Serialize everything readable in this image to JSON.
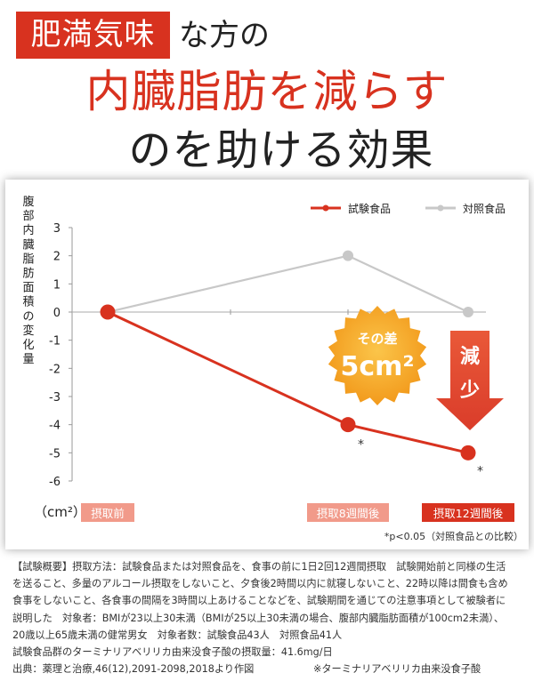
{
  "header": {
    "badge": "肥満気味",
    "badge_suffix": "な方の",
    "headline_red": "内臓脂肪を減らす",
    "headline_black": "のを助ける効果"
  },
  "colors": {
    "accent_red": "#d8321f",
    "control_gray": "#c8c8c8",
    "burst_orange": "#f5a623",
    "tag_pink": "#f19a8a"
  },
  "chart_data": {
    "type": "line",
    "categories": [
      "摂取前",
      "摂取8週間後",
      "摂取12週間後"
    ],
    "series": [
      {
        "name": "試験食品",
        "values": [
          0,
          -4,
          -5
        ],
        "color": "#d8321f"
      },
      {
        "name": "対照食品",
        "values": [
          0,
          2,
          0
        ],
        "color": "#c8c8c8"
      }
    ],
    "ylabel": "腹部内臓脂肪面積の変化量",
    "yunit": "（cm²）",
    "ylim": [
      -6,
      3
    ],
    "yticks": [
      "3",
      "2",
      "1",
      "0",
      "-1",
      "-2",
      "-3",
      "-4",
      "-5",
      "-6"
    ],
    "legend": "top-right",
    "significance_marks": [
      "*",
      "*"
    ],
    "footnote": "*p<0.05（対照食品との比較）",
    "burst_label_top": "その差",
    "burst_label_value": "5cm²",
    "arrow_label": "減少",
    "highlight_category": "摂取12週間後"
  },
  "notes": {
    "lines": [
      "【試験概要】摂取方法：試験食品または対照食品を、食事の前に1日2回12週間摂取　試験開始前と同様の生活",
      "を送ること、多量のアルコール摂取をしないこと、夕食後2時間以内に就寝しないこと、22時以降は間食も含め",
      "食事をしないこと、各食事の間隔を3時間以上あけることなどを、試験期間を通じての注意事項として被験者に",
      "説明した　対象者：BMIが23以上30未満（BMIが25以上30未満の場合、腹部内臓脂肪面積が100cm2未満）、",
      "20歳以上65歳未満の健常男女　対象者数：試験食品43人　対照食品41人",
      "試験食品群のターミナリアベリリカ由来没食子酸の摂取量：41.6mg/日"
    ],
    "source": "出典：薬理と治療,46(12),2091-2098,2018より作図",
    "source_note": "※ターミナリアベリリカ由来没食子酸"
  }
}
